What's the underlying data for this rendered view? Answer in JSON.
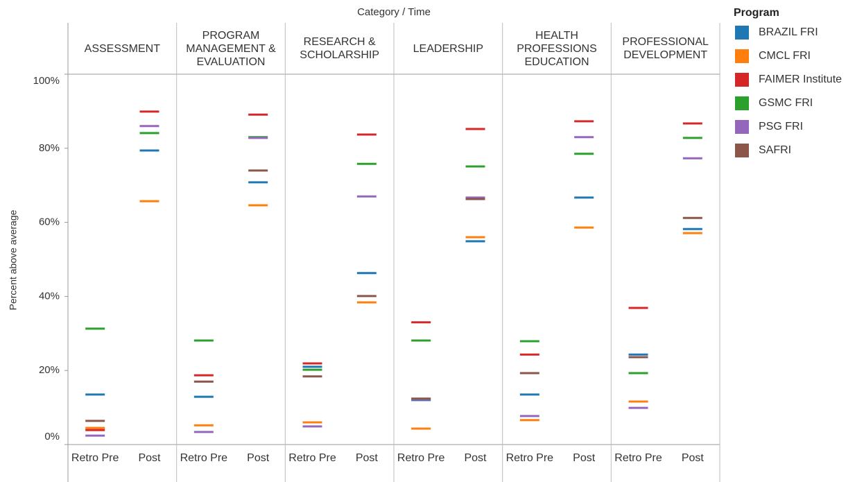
{
  "chart_data": {
    "type": "strip",
    "title": "Category / Time",
    "y_label": "Percent above average",
    "legend_title": "Program",
    "facets": [
      "ASSESSMENT",
      "PROGRAM MANAGEMENT & EVALUATION",
      "RESEARCH & SCHOLARSHIP",
      "LEADERSHIP",
      "HEALTH PROFESSIONS EDUCATION",
      "PROFESSIONAL DEVELOPMENT"
    ],
    "categories": [
      "Retro Pre",
      "Post"
    ],
    "ylim": [
      0,
      100
    ],
    "yticks": [
      {
        "value": 0,
        "label": "0%"
      },
      {
        "value": 20,
        "label": "20%"
      },
      {
        "value": 40,
        "label": "40%"
      },
      {
        "value": 60,
        "label": "60%"
      },
      {
        "value": 80,
        "label": "80%"
      },
      {
        "value": 100,
        "label": "100%"
      }
    ],
    "series": [
      {
        "name": "BRAZIL FRI",
        "color": "#1f77b4",
        "values": [
          [
            13.5,
            79.4
          ],
          [
            12.9,
            70.8
          ],
          [
            21.0,
            46.3
          ],
          [
            12.0,
            54.9
          ],
          [
            13.5,
            66.7
          ],
          [
            24.3,
            58.2
          ]
        ]
      },
      {
        "name": "CMCL FRI",
        "color": "#ff7f0e",
        "values": [
          [
            4.5,
            65.7
          ],
          [
            5.2,
            64.6
          ],
          [
            6.0,
            38.4
          ],
          [
            4.3,
            56.0
          ],
          [
            6.6,
            58.6
          ],
          [
            11.6,
            57.1
          ]
        ]
      },
      {
        "name": "FAIMER Institute",
        "color": "#d62728",
        "values": [
          [
            3.9,
            89.9
          ],
          [
            18.7,
            89.1
          ],
          [
            21.9,
            83.7
          ],
          [
            33.0,
            85.2
          ],
          [
            24.3,
            87.3
          ],
          [
            36.9,
            86.7
          ]
        ]
      },
      {
        "name": "GSMC FRI",
        "color": "#2ca02c",
        "values": [
          [
            31.3,
            84.1
          ],
          [
            28.1,
            83.0
          ],
          [
            20.2,
            75.8
          ],
          [
            28.1,
            75.1
          ],
          [
            27.9,
            78.5
          ],
          [
            19.3,
            82.8
          ]
        ]
      },
      {
        "name": "PSG FRI",
        "color": "#9467bd",
        "values": [
          [
            2.4,
            86.0
          ],
          [
            3.4,
            82.8
          ],
          [
            4.9,
            67.0
          ],
          [
            12.2,
            66.7
          ],
          [
            7.7,
            83.0
          ],
          [
            9.9,
            77.3
          ]
        ]
      },
      {
        "name": "SAFRI",
        "color": "#8c564b",
        "values": [
          [
            6.4,
            null
          ],
          [
            17.0,
            74.0
          ],
          [
            18.4,
            40.1
          ],
          [
            12.4,
            66.3
          ],
          [
            19.3,
            null
          ],
          [
            23.6,
            61.2
          ]
        ]
      }
    ]
  }
}
